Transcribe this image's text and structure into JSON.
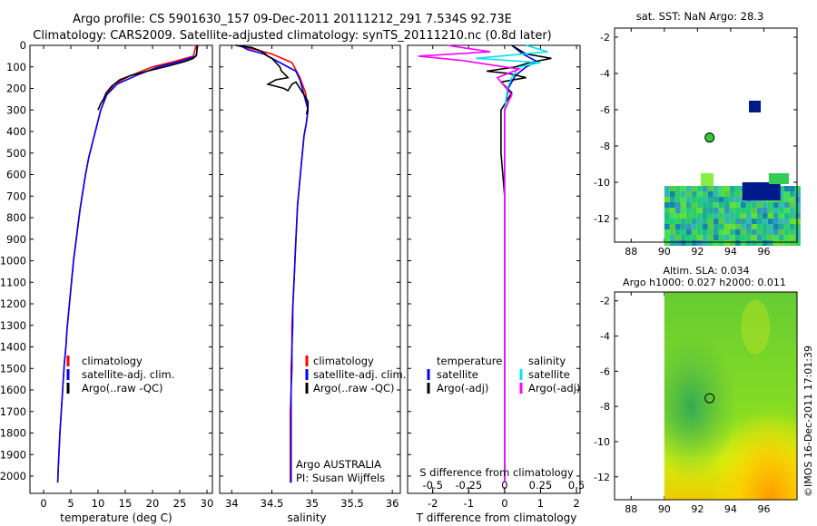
{
  "header": {
    "line1": "Argo profile: CS 5901630_157 09-Dec-2011 20111212_291 7.534S 92.73E",
    "line2": "Climatology: CARS2009. Satellite-adjusted climatology: synTS_20111210.nc (0.8d later)"
  },
  "colors": {
    "climatology": "#ff0000",
    "satellite": "#0000ff",
    "argo": "#000000",
    "salinity_satellite": "#00e5ee",
    "salinity_argo": "#ff00ff"
  },
  "chart_data": [
    {
      "type": "line",
      "panel": "temperature",
      "xlabel": "temperature (deg C)",
      "ylabel": "",
      "xlim": [
        -2.5,
        31
      ],
      "ylim": [
        2080,
        0
      ],
      "x_ticks": [
        "0",
        "5",
        "10",
        "15",
        "20",
        "25",
        "30"
      ],
      "x_tick_values": [
        0,
        5,
        10,
        15,
        20,
        25,
        30
      ],
      "y_ticks": [
        "0",
        "100",
        "200",
        "300",
        "400",
        "500",
        "600",
        "700",
        "800",
        "900",
        "1000",
        "1100",
        "1200",
        "1300",
        "1400",
        "1500",
        "1600",
        "1700",
        "1800",
        "1900",
        "2000"
      ],
      "y_tick_values": [
        0,
        100,
        200,
        300,
        400,
        500,
        600,
        700,
        800,
        900,
        1000,
        1100,
        1200,
        1300,
        1400,
        1500,
        1600,
        1700,
        1800,
        1900,
        2000
      ],
      "legend": [
        "climatology",
        "satellite-adj. clim.",
        "Argo(..raw -QC)"
      ],
      "series": [
        {
          "name": "climatology",
          "color": "#ff0000",
          "x": [
            28.0,
            27.5,
            24,
            20,
            16,
            13,
            11.5,
            10.5,
            9.7,
            9,
            8.3,
            7.7,
            7.2,
            6.7,
            6.3,
            5.9,
            5.5,
            5.2,
            4.9,
            4.6,
            4.3,
            4.1,
            3.8,
            3.6,
            3.4,
            3.2,
            3.0,
            2.85,
            2.7,
            2.6
          ],
          "y": [
            0,
            50,
            75,
            100,
            140,
            180,
            230,
            300,
            380,
            450,
            520,
            600,
            680,
            760,
            840,
            920,
            1000,
            1080,
            1160,
            1240,
            1320,
            1400,
            1480,
            1560,
            1640,
            1720,
            1800,
            1880,
            1960,
            2030
          ]
        },
        {
          "name": "satellite-adj. clim.",
          "color": "#0000ff",
          "x": [
            28.3,
            28.0,
            25,
            21,
            17,
            13.5,
            11.6,
            10.5,
            9.7,
            9,
            8.3,
            7.7,
            7.2,
            6.7,
            6.3,
            5.9,
            5.5,
            5.2,
            4.9,
            4.6,
            4.3,
            4.1,
            3.8,
            3.6,
            3.4,
            3.2,
            3.0,
            2.85,
            2.7,
            2.6
          ],
          "y": [
            0,
            50,
            75,
            100,
            140,
            180,
            230,
            300,
            380,
            450,
            520,
            600,
            680,
            760,
            840,
            920,
            1000,
            1080,
            1160,
            1240,
            1320,
            1400,
            1480,
            1560,
            1640,
            1720,
            1800,
            1880,
            1960,
            2030
          ]
        },
        {
          "name": "Argo(..raw -QC)",
          "color": "#000000",
          "x": [
            28.2,
            28.1,
            27.5,
            26,
            23,
            19,
            16,
            14,
            12.5,
            11.5,
            11,
            10.5,
            10
          ],
          "y": [
            0,
            45,
            60,
            75,
            95,
            120,
            140,
            160,
            190,
            220,
            250,
            270,
            300
          ]
        }
      ]
    },
    {
      "type": "line",
      "panel": "salinity",
      "xlabel": "salinity",
      "xlim": [
        33.85,
        36.1
      ],
      "ylim": [
        2080,
        0
      ],
      "x_ticks": [
        "34",
        "34.5",
        "35",
        "35.5",
        "36"
      ],
      "x_tick_values": [
        34,
        34.5,
        35,
        35.5,
        36
      ],
      "legend": [
        "climatology",
        "satellite-adj. clim.",
        "Argo(..raw -QC)"
      ],
      "series": [
        {
          "name": "climatology",
          "color": "#ff0000",
          "x": [
            34.05,
            34.3,
            34.5,
            34.75,
            34.85,
            34.92,
            34.95,
            34.93,
            34.9,
            34.88,
            34.86,
            34.84,
            34.82,
            34.81,
            34.8,
            34.79,
            34.78,
            34.77,
            34.76,
            34.75,
            34.75,
            34.74,
            34.74,
            34.73,
            34.73,
            34.73,
            34.73
          ],
          "y": [
            0,
            20,
            40,
            80,
            150,
            220,
            300,
            360,
            420,
            500,
            580,
            660,
            740,
            820,
            900,
            980,
            1060,
            1140,
            1220,
            1300,
            1400,
            1500,
            1600,
            1700,
            1800,
            1900,
            2030
          ]
        },
        {
          "name": "satellite-adj. clim.",
          "color": "#0000ff",
          "x": [
            34.1,
            34.2,
            34.4,
            34.6,
            34.8,
            34.85,
            34.9,
            34.95,
            34.93,
            34.9,
            34.88,
            34.86,
            34.84,
            34.82,
            34.81,
            34.8,
            34.79,
            34.78,
            34.77,
            34.76,
            34.76,
            34.75,
            34.75,
            34.74,
            34.74,
            34.74,
            34.74
          ],
          "y": [
            0,
            20,
            40,
            80,
            120,
            160,
            230,
            300,
            360,
            420,
            500,
            580,
            660,
            740,
            820,
            900,
            980,
            1060,
            1140,
            1220,
            1300,
            1400,
            1500,
            1600,
            1700,
            1800,
            2030
          ]
        },
        {
          "name": "Argo(..raw -QC)",
          "color": "#000000",
          "x": [
            34.05,
            34.25,
            34.35,
            34.4,
            34.45,
            34.5,
            34.55,
            34.6,
            34.62,
            34.65,
            34.7,
            34.55,
            34.45,
            34.55,
            34.65,
            34.7,
            34.75,
            34.8,
            34.85,
            34.9,
            34.95,
            34.95,
            34.93
          ],
          "y": [
            0,
            10,
            25,
            35,
            50,
            60,
            80,
            100,
            120,
            130,
            150,
            160,
            180,
            190,
            200,
            210,
            180,
            170,
            200,
            230,
            260,
            290,
            320
          ]
        }
      ],
      "annotations": [
        "Argo AUSTRALIA",
        "PI: Susan Wijffels"
      ]
    },
    {
      "type": "line",
      "panel": "differences",
      "xlabel": "T difference from climatology",
      "secondary_xlabel": "S difference from climatology",
      "xlim": [
        -2.7,
        2.1
      ],
      "ylim": [
        2080,
        0
      ],
      "x_ticks": [
        "-2",
        "-1",
        "0",
        "1",
        "2"
      ],
      "x_tick_values": [
        -2,
        -1,
        0,
        1,
        2
      ],
      "s_ticks": [
        "-0.5",
        "-0.25",
        "0",
        "0.25",
        "0.5"
      ],
      "s_tick_values": [
        -0.5,
        -0.25,
        0,
        0.25,
        0.5
      ],
      "legend_headers": [
        "temperature",
        "salinity"
      ],
      "legend": [
        "satellite",
        "Argo(-adj)",
        "satellite",
        "Argo(-adj)"
      ],
      "series": [
        {
          "name": "satellite",
          "group": "temperature",
          "color": "#0000ff",
          "x": [
            0.2,
            0.5,
            0.9,
            0.6,
            0.3,
            0.1,
            0,
            0,
            0,
            0,
            0,
            0,
            0,
            0,
            0,
            0
          ],
          "y": [
            0,
            40,
            75,
            100,
            140,
            200,
            300,
            400,
            600,
            800,
            1000,
            1200,
            1400,
            1600,
            1800,
            2030
          ]
        },
        {
          "name": "Argo(-adj)",
          "group": "temperature",
          "color": "#000000",
          "x": [
            0.2,
            0.6,
            1.3,
            0.7,
            0.3,
            -0.5,
            0.1,
            0.6,
            -0.1,
            0.2,
            -0.1,
            -0.1,
            0,
            0,
            0,
            0,
            0,
            0
          ],
          "y": [
            0,
            40,
            60,
            80,
            100,
            120,
            130,
            150,
            170,
            220,
            300,
            500,
            700,
            900,
            1100,
            1400,
            1700,
            2030
          ]
        },
        {
          "name": "satellite",
          "group": "salinity",
          "color": "#00e5ee",
          "x": [
            0.15,
            0.3,
            -0.2,
            0.25,
            0.1,
            0.05,
            0.02,
            0,
            0,
            0,
            0,
            0,
            0,
            0,
            0
          ],
          "y": [
            0,
            30,
            60,
            80,
            100,
            150,
            200,
            300,
            500,
            700,
            900,
            1200,
            1500,
            1800,
            2030
          ]
        },
        {
          "name": "Argo(-adj)",
          "group": "salinity",
          "color": "#ff00ff",
          "x": [
            -0.4,
            -0.1,
            -0.6,
            -0.3,
            -0.1,
            0.1,
            -0.05,
            0.05,
            0,
            0,
            0,
            0,
            0,
            0
          ],
          "y": [
            0,
            30,
            50,
            70,
            90,
            110,
            150,
            230,
            300,
            500,
            800,
            1200,
            1600,
            2030
          ]
        }
      ]
    },
    {
      "type": "heatmap",
      "panel": "sst-map",
      "title": "sat. SST: NaN Argo: 28.3",
      "x_ticks": [
        "88",
        "90",
        "92",
        "94",
        "96"
      ],
      "x_tick_values": [
        88,
        90,
        92,
        94,
        96
      ],
      "y_ticks": [
        "-2",
        "-4",
        "-6",
        "-8",
        "-10",
        "-12"
      ],
      "y_tick_values": [
        -2,
        -4,
        -6,
        -8,
        -10,
        -12
      ],
      "xlim": [
        87,
        98
      ],
      "ylim": [
        -13.3,
        -1.5
      ],
      "argo_position": [
        92.73,
        -7.534
      ]
    },
    {
      "type": "heatmap",
      "panel": "sla-map",
      "title": "Altim. SLA: 0.034",
      "subtitle": "Argo h1000: 0.027 h2000: 0.011",
      "x_ticks": [
        "88",
        "90",
        "92",
        "94",
        "96"
      ],
      "x_tick_values": [
        88,
        90,
        92,
        94,
        96
      ],
      "y_ticks": [
        "-2",
        "-4",
        "-6",
        "-8",
        "-10",
        "-12"
      ],
      "y_tick_values": [
        -2,
        -4,
        -6,
        -8,
        -10,
        -12
      ],
      "xlim": [
        87,
        98
      ],
      "ylim": [
        -13.3,
        -1.5
      ],
      "argo_position": [
        92.73,
        -7.534
      ]
    }
  ],
  "credit": "©IMOS 16-Dec-2011 17:01:39"
}
